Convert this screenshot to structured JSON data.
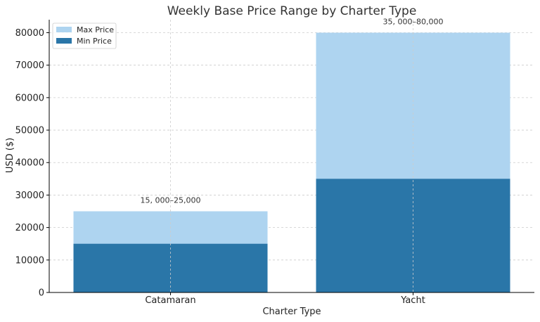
{
  "chart_data": {
    "type": "bar",
    "title": "Weekly Base Price Range by Charter Type",
    "xlabel": "Charter Type",
    "ylabel": "USD ($)",
    "categories": [
      "Catamaran",
      "Yacht"
    ],
    "series": [
      {
        "name": "Max Price",
        "values": [
          25000,
          80000
        ],
        "color": "#aed4f0"
      },
      {
        "name": "Min Price",
        "values": [
          15000,
          35000
        ],
        "color": "#2a76a8"
      }
    ],
    "annotations": [
      "15, 000–25,000",
      "35, 000–80,000"
    ],
    "yticks": [
      0,
      10000,
      20000,
      30000,
      40000,
      50000,
      60000,
      70000,
      80000
    ],
    "ylim": [
      0,
      84000
    ],
    "grid": true,
    "legend_position": "top-left"
  }
}
